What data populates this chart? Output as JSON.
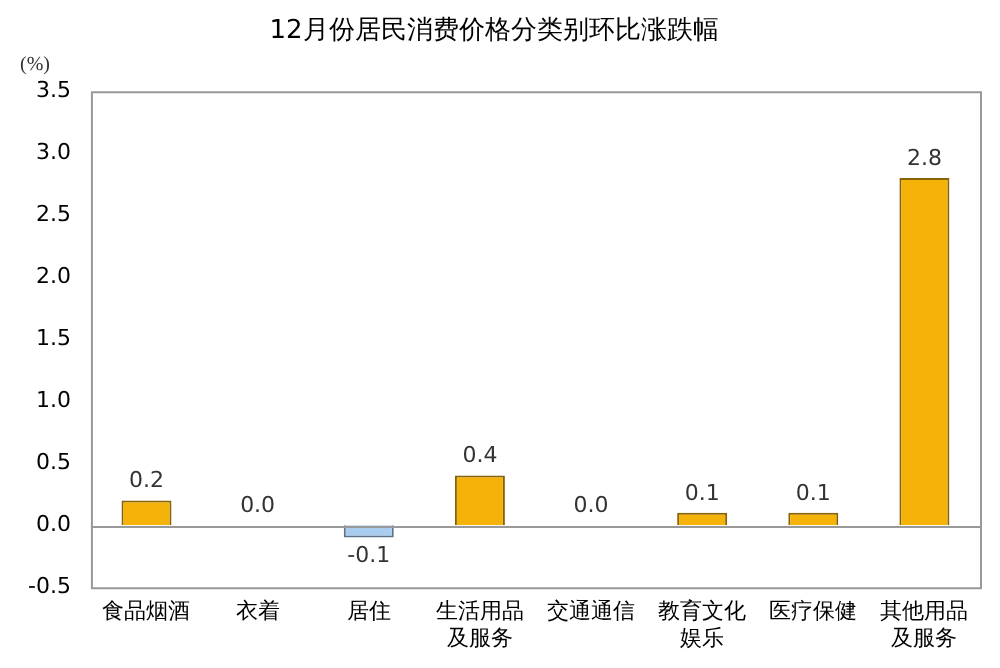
{
  "chart_data": {
    "type": "bar",
    "title": "12月份居民消费价格分类别环比涨跌幅",
    "ylabel": "(%)",
    "categories": [
      "食品烟酒",
      "衣着",
      "居住",
      "生活用品及服务",
      "交通通信",
      "教育文化娱乐",
      "医疗保健",
      "其他用品及服务"
    ],
    "values": [
      0.2,
      0.0,
      -0.1,
      0.4,
      0.0,
      0.1,
      0.1,
      2.8
    ],
    "value_labels": [
      "0.2",
      "0.0",
      "-0.1",
      "0.4",
      "0.0",
      "0.1",
      "0.1",
      "2.8"
    ],
    "colors": [
      "#f5b30a",
      "#f5b30a",
      "#a9cdf0",
      "#f5b30a",
      "#f5b30a",
      "#f5b30a",
      "#f5b30a",
      "#f5b30a"
    ],
    "ylim": [
      -0.5,
      3.5
    ],
    "yticks": [
      {
        "value": -0.5,
        "label": "-0.5"
      },
      {
        "value": 0,
        "label": "0.0"
      },
      {
        "value": 0.5,
        "label": "0.5"
      },
      {
        "value": 1,
        "label": "1.0"
      },
      {
        "value": 1.5,
        "label": "1.5"
      },
      {
        "value": 2,
        "label": "2.0"
      },
      {
        "value": 2.5,
        "label": "2.5"
      },
      {
        "value": 3,
        "label": "3.0"
      },
      {
        "value": 3.5,
        "label": "3.5"
      }
    ],
    "legend": false
  }
}
